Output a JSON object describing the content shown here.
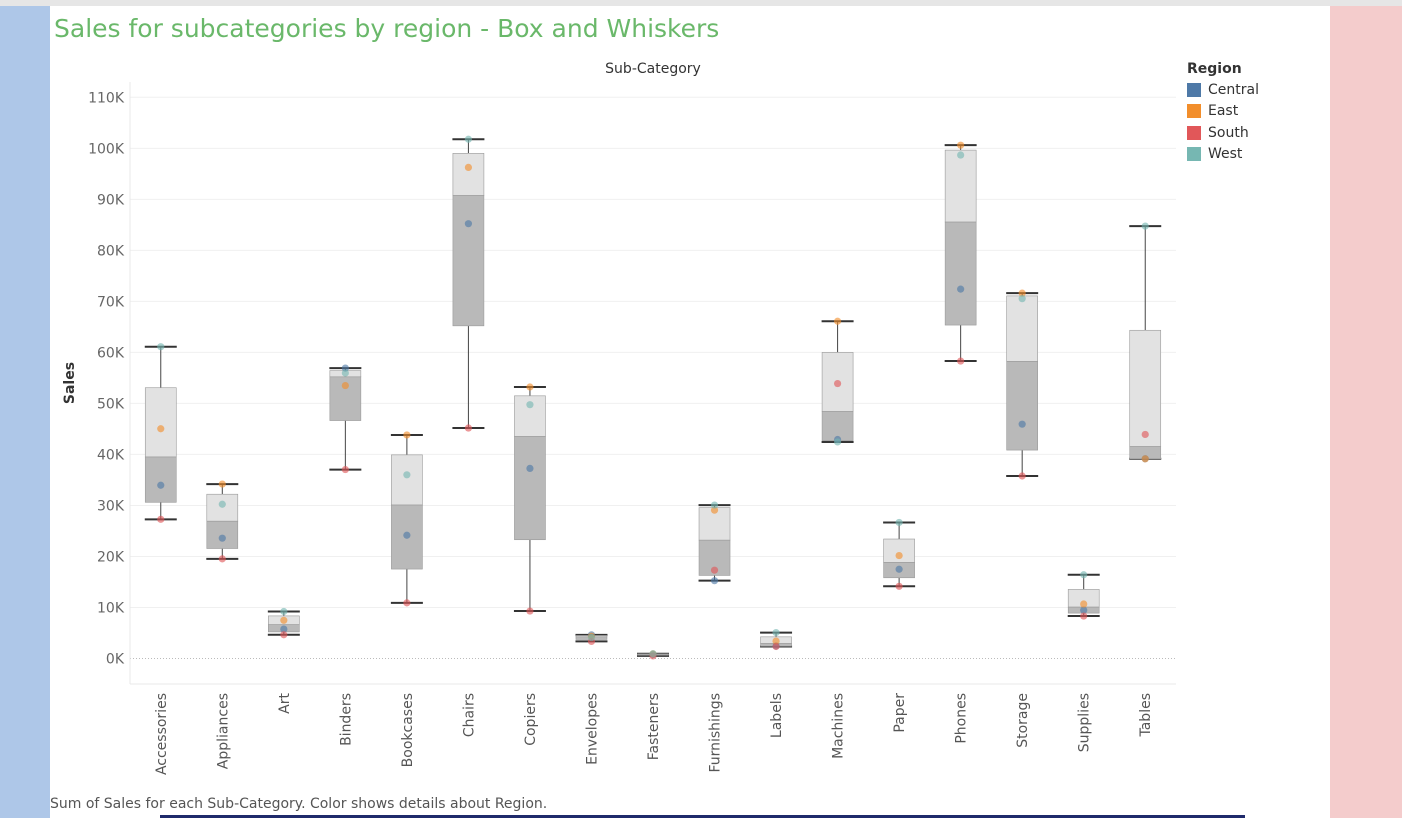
{
  "page": {
    "title": "Sales for subcategories by region - Box and Whiskers",
    "caption": "Sum of Sales for each Sub-Category.  Color shows details about Region."
  },
  "legend": {
    "title": "Region",
    "items": [
      {
        "label": "Central",
        "color": "#4e79a7"
      },
      {
        "label": "East",
        "color": "#f28e2b"
      },
      {
        "label": "South",
        "color": "#e15759"
      },
      {
        "label": "West",
        "color": "#76b7b2"
      }
    ]
  },
  "chart_data": {
    "type": "boxplot",
    "title": "Sales for subcategories by region - Box and Whiskers",
    "header": "Sub-Category",
    "ylabel": "Sales",
    "ylim": [
      -5000,
      113000
    ],
    "yticks": [
      0,
      10000,
      20000,
      30000,
      40000,
      50000,
      60000,
      70000,
      80000,
      90000,
      100000,
      110000
    ],
    "ytick_labels": [
      "0K",
      "10K",
      "20K",
      "30K",
      "40K",
      "50K",
      "60K",
      "70K",
      "80K",
      "90K",
      "100K",
      "110K"
    ],
    "grid": "horizontal",
    "legend_position": "right",
    "series_names": [
      "Central",
      "East",
      "South",
      "West"
    ],
    "categories": [
      "Accessories",
      "Appliances",
      "Art",
      "Binders",
      "Bookcases",
      "Chairs",
      "Copiers",
      "Envelopes",
      "Fasteners",
      "Furnishings",
      "Labels",
      "Machines",
      "Paper",
      "Phones",
      "Storage",
      "Supplies",
      "Tables"
    ],
    "values": {
      "Central": [
        33956,
        23582,
        5765,
        56923,
        24157,
        85231,
        37259,
        4636,
        778,
        15254,
        2451,
        42922,
        17492,
        72403,
        45930,
        9467,
        39154
      ],
      "East": [
        45033,
        34188,
        7486,
        53497,
        43819,
        96261,
        53219,
        4376,
        899,
        29071,
        3414,
        66106,
        20173,
        100615,
        71613,
        10674,
        39140
      ],
      "South": [
        27277,
        19525,
        4656,
        37030,
        10899,
        45176,
        9299,
        3346,
        503,
        17306,
        2353,
        53891,
        14151,
        58304,
        35768,
        8319,
        43916
      ],
      "West": [
        61114,
        30236,
        9212,
        55961,
        36004,
        101781,
        49750,
        4118,
        923,
        30073,
        5079,
        42444,
        26664,
        98684,
        70532,
        16415,
        84754
      ]
    },
    "box_stats": [
      {
        "min": 27277,
        "q1": 30617,
        "median": 39495,
        "q3": 53074,
        "max": 61114
      },
      {
        "min": 19525,
        "q1": 21554,
        "median": 26909,
        "q3": 32200,
        "max": 34188
      },
      {
        "min": 4656,
        "q1": 5211,
        "median": 6626,
        "q3": 8349,
        "max": 9212
      },
      {
        "min": 37030,
        "q1": 46638,
        "median": 55210,
        "q3": 56442,
        "max": 56923
      },
      {
        "min": 10899,
        "q1": 17528,
        "median": 30081,
        "q3": 39912,
        "max": 43819
      },
      {
        "min": 45176,
        "q1": 65204,
        "median": 90746,
        "q3": 99021,
        "max": 101781
      },
      {
        "min": 9299,
        "q1": 23279,
        "median": 43505,
        "q3": 51485,
        "max": 53219
      },
      {
        "min": 3346,
        "q1": 3732,
        "median": 4247,
        "q3": 4506,
        "max": 4636
      },
      {
        "min": 503,
        "q1": 640,
        "median": 838,
        "q3": 911,
        "max": 923
      },
      {
        "min": 15254,
        "q1": 16280,
        "median": 23189,
        "q3": 29572,
        "max": 30073
      },
      {
        "min": 2353,
        "q1": 2402,
        "median": 2932,
        "q3": 4246,
        "max": 5079
      },
      {
        "min": 42444,
        "q1": 42683,
        "median": 48407,
        "q3": 59999,
        "max": 66106
      },
      {
        "min": 14151,
        "q1": 15822,
        "median": 18833,
        "q3": 23419,
        "max": 26664
      },
      {
        "min": 58304,
        "q1": 65354,
        "median": 85544,
        "q3": 99650,
        "max": 100615
      },
      {
        "min": 35768,
        "q1": 40849,
        "median": 58231,
        "q3": 71073,
        "max": 71613
      },
      {
        "min": 8319,
        "q1": 8893,
        "median": 10071,
        "q3": 13545,
        "max": 16415
      },
      {
        "min": 39140,
        "q1": 39147,
        "median": 41535,
        "q3": 64335,
        "max": 84754
      }
    ]
  }
}
